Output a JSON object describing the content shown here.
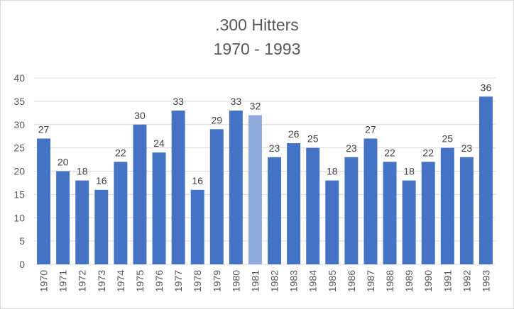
{
  "chart_data": {
    "type": "bar",
    "title": ".300 Hitters",
    "subtitle": "1970 - 1993",
    "xlabel": "",
    "ylabel": "",
    "categories": [
      "1970",
      "1971",
      "1972",
      "1973",
      "1974",
      "1975",
      "1976",
      "1977",
      "1978",
      "1979",
      "1980",
      "1981",
      "1982",
      "1983",
      "1984",
      "1985",
      "1986",
      "1987",
      "1988",
      "1989",
      "1990",
      "1991",
      "1992",
      "1993"
    ],
    "values": [
      27,
      20,
      18,
      16,
      22,
      30,
      24,
      33,
      16,
      29,
      33,
      32,
      23,
      26,
      25,
      18,
      23,
      27,
      22,
      18,
      22,
      25,
      23,
      36
    ],
    "ylim": [
      0,
      40
    ],
    "yticks": [
      0,
      5,
      10,
      15,
      20,
      25,
      30,
      35,
      40
    ],
    "grid": true,
    "legend": "none",
    "data_labels": true,
    "colors": {
      "bar": "#4472c4",
      "highlight_bar": "#8faadc",
      "grid": "#d9d9d9",
      "text": "#595959"
    },
    "highlight_category": "1981"
  }
}
